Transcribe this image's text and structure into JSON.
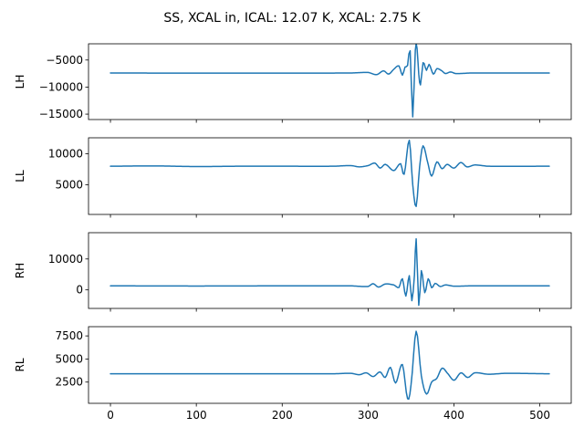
{
  "chart_data": {
    "type": "line",
    "title": "SS, XCAL in, ICAL: 12.07 K, XCAL: 2.75 K",
    "color": "#1f77b4",
    "x_range": [
      0,
      511
    ],
    "xlim": [
      -25.55,
      536.55
    ],
    "shared_x_ticks": [
      0,
      100,
      200,
      300,
      400,
      500
    ],
    "panels": [
      {
        "ylabel": "LH",
        "ylim": [
          -16000,
          -2000
        ],
        "yticks": [
          -5000,
          -10000,
          -15000
        ],
        "ytick_labels": [
          "−5000",
          "−10000",
          "−15000"
        ],
        "baseline": -7400,
        "points": [
          [
            0,
            -7400
          ],
          [
            100,
            -7420
          ],
          [
            200,
            -7410
          ],
          [
            280,
            -7400
          ],
          [
            300,
            -7300
          ],
          [
            310,
            -7700
          ],
          [
            318,
            -7000
          ],
          [
            324,
            -7600
          ],
          [
            330,
            -6700
          ],
          [
            336,
            -6100
          ],
          [
            340,
            -7800
          ],
          [
            343,
            -6300
          ],
          [
            346,
            -6000
          ],
          [
            349,
            -3300
          ],
          [
            352,
            -15500
          ],
          [
            355,
            -3200
          ],
          [
            357,
            -2800
          ],
          [
            359,
            -7600
          ],
          [
            361,
            -9600
          ],
          [
            364,
            -5500
          ],
          [
            368,
            -6900
          ],
          [
            371,
            -5800
          ],
          [
            376,
            -7600
          ],
          [
            380,
            -6600
          ],
          [
            386,
            -7000
          ],
          [
            390,
            -7500
          ],
          [
            396,
            -7200
          ],
          [
            402,
            -7500
          ],
          [
            420,
            -7400
          ],
          [
            511,
            -7400
          ]
        ]
      },
      {
        "ylabel": "LL",
        "ylim": [
          200,
          12600
        ],
        "yticks": [
          10000,
          5000
        ],
        "ytick_labels": [
          "10000",
          "5000"
        ],
        "baseline": 8000,
        "points": [
          [
            0,
            8000
          ],
          [
            50,
            8050
          ],
          [
            100,
            7950
          ],
          [
            150,
            8000
          ],
          [
            200,
            8000
          ],
          [
            260,
            8000
          ],
          [
            280,
            8100
          ],
          [
            290,
            7900
          ],
          [
            300,
            8100
          ],
          [
            308,
            8500
          ],
          [
            314,
            7700
          ],
          [
            320,
            8300
          ],
          [
            330,
            7300
          ],
          [
            338,
            8400
          ],
          [
            342,
            6700
          ],
          [
            348,
            12200
          ],
          [
            352,
            5000
          ],
          [
            356,
            1500
          ],
          [
            360,
            7900
          ],
          [
            364,
            11300
          ],
          [
            370,
            8300
          ],
          [
            374,
            6400
          ],
          [
            380,
            8700
          ],
          [
            386,
            7600
          ],
          [
            392,
            8300
          ],
          [
            400,
            7700
          ],
          [
            408,
            8600
          ],
          [
            415,
            7900
          ],
          [
            424,
            8200
          ],
          [
            440,
            8000
          ],
          [
            511,
            8000
          ]
        ]
      },
      {
        "ylabel": "RH",
        "ylim": [
          -6000,
          18500
        ],
        "yticks": [
          10000,
          0
        ],
        "ytick_labels": [
          "10000",
          "0"
        ],
        "baseline": 1300,
        "points": [
          [
            0,
            1300
          ],
          [
            100,
            1250
          ],
          [
            200,
            1300
          ],
          [
            280,
            1300
          ],
          [
            300,
            1100
          ],
          [
            306,
            2000
          ],
          [
            312,
            900
          ],
          [
            320,
            1900
          ],
          [
            330,
            1600
          ],
          [
            336,
            800
          ],
          [
            340,
            3600
          ],
          [
            344,
            -2000
          ],
          [
            348,
            4600
          ],
          [
            351,
            -3500
          ],
          [
            354,
            4800
          ],
          [
            356,
            16500
          ],
          [
            359,
            -5000
          ],
          [
            362,
            6200
          ],
          [
            366,
            -900
          ],
          [
            370,
            3600
          ],
          [
            374,
            700
          ],
          [
            378,
            2100
          ],
          [
            384,
            1100
          ],
          [
            390,
            1600
          ],
          [
            400,
            1200
          ],
          [
            420,
            1300
          ],
          [
            511,
            1300
          ]
        ]
      },
      {
        "ylabel": "RL",
        "ylim": [
          200,
          8500
        ],
        "yticks": [
          7500,
          5000,
          2500
        ],
        "ytick_labels": [
          "7500",
          "5000",
          "2500"
        ],
        "baseline": 3400,
        "points": [
          [
            0,
            3400
          ],
          [
            100,
            3400
          ],
          [
            200,
            3400
          ],
          [
            260,
            3400
          ],
          [
            280,
            3450
          ],
          [
            290,
            3300
          ],
          [
            298,
            3500
          ],
          [
            306,
            3100
          ],
          [
            314,
            3600
          ],
          [
            320,
            3000
          ],
          [
            326,
            4100
          ],
          [
            332,
            2400
          ],
          [
            340,
            4400
          ],
          [
            346,
            700
          ],
          [
            350,
            2200
          ],
          [
            356,
            8000
          ],
          [
            362,
            3200
          ],
          [
            368,
            1200
          ],
          [
            374,
            2500
          ],
          [
            380,
            2900
          ],
          [
            386,
            4000
          ],
          [
            392,
            3500
          ],
          [
            400,
            2700
          ],
          [
            408,
            3500
          ],
          [
            416,
            3000
          ],
          [
            424,
            3500
          ],
          [
            440,
            3350
          ],
          [
            460,
            3450
          ],
          [
            511,
            3400
          ]
        ]
      }
    ]
  }
}
